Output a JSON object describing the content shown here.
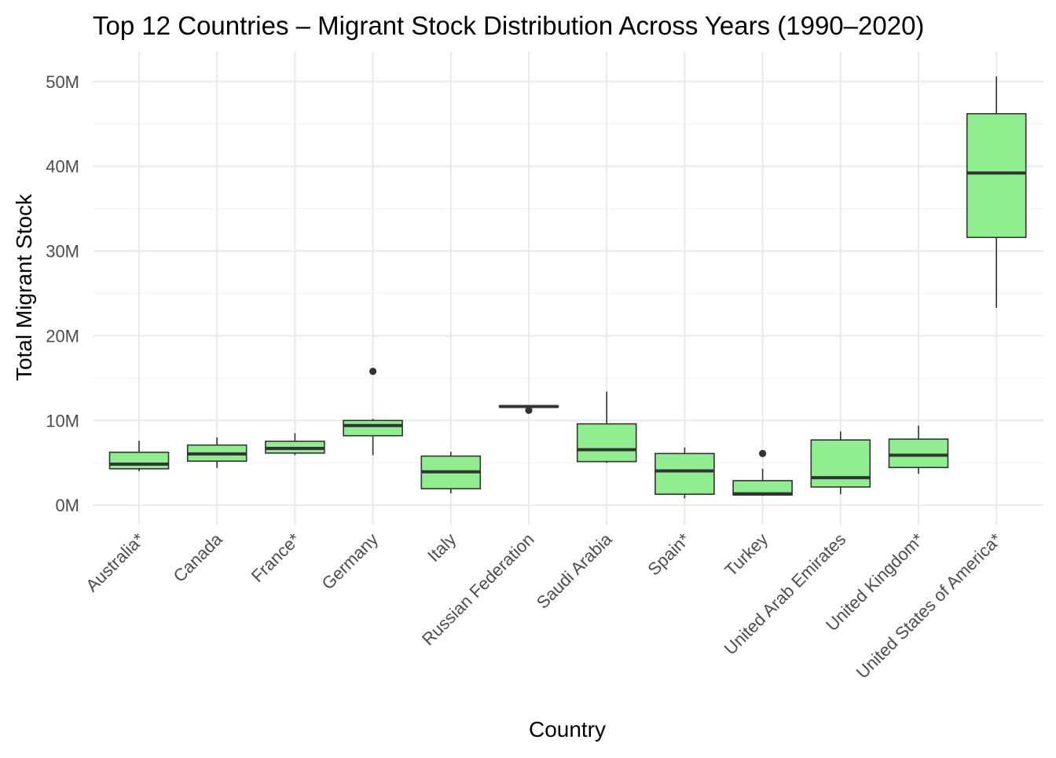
{
  "chart_data": {
    "type": "boxplot",
    "title": "Top 12 Countries – Migrant Stock Distribution Across Years (1990–2020)",
    "xlabel": "Country",
    "ylabel": "Total Migrant Stock",
    "ylim": [
      -2.3,
      53.5
    ],
    "y_unit": "M",
    "yticks": [
      0,
      10,
      20,
      30,
      40,
      50
    ],
    "ytick_labels": [
      "0M",
      "10M",
      "20M",
      "30M",
      "40M",
      "50M"
    ],
    "grid": true,
    "fill_color": "#90ee90",
    "stroke_color": "#333333",
    "categories": [
      "Australia*",
      "Canada",
      "France*",
      "Germany",
      "Italy",
      "Russian Federation",
      "Saudi Arabia",
      "Spain*",
      "Turkey",
      "United Arab Emirates",
      "United Kingdom*",
      "United States of America*"
    ],
    "boxes": [
      {
        "label": "Australia*",
        "min": 4.0,
        "q1": 4.3,
        "median": 4.85,
        "q3": 6.25,
        "max": 7.6,
        "outliers": []
      },
      {
        "label": "Canada",
        "min": 4.4,
        "q1": 5.2,
        "median": 6.05,
        "q3": 7.1,
        "max": 8.0,
        "outliers": []
      },
      {
        "label": "France*",
        "min": 5.9,
        "q1": 6.15,
        "median": 6.7,
        "q3": 7.55,
        "max": 8.5,
        "outliers": []
      },
      {
        "label": "Germany",
        "min": 5.9,
        "q1": 8.2,
        "median": 9.4,
        "q3": 10.0,
        "max": 10.2,
        "outliers": [
          15.8
        ]
      },
      {
        "label": "Italy",
        "min": 1.4,
        "q1": 1.95,
        "median": 3.95,
        "q3": 5.8,
        "max": 6.3,
        "outliers": []
      },
      {
        "label": "Russian Federation",
        "min": 11.6,
        "q1": 11.6,
        "median": 11.65,
        "q3": 11.7,
        "max": 11.7,
        "outliers": [
          11.2
        ]
      },
      {
        "label": "Saudi Arabia",
        "min": 5.0,
        "q1": 5.15,
        "median": 6.55,
        "q3": 9.6,
        "max": 13.4,
        "outliers": []
      },
      {
        "label": "Spain*",
        "min": 0.8,
        "q1": 1.3,
        "median": 4.05,
        "q3": 6.1,
        "max": 6.8,
        "outliers": []
      },
      {
        "label": "Turkey",
        "min": 1.1,
        "q1": 1.2,
        "median": 1.35,
        "q3": 2.9,
        "max": 4.3,
        "outliers": [
          6.1
        ]
      },
      {
        "label": "United Arab Emirates",
        "min": 1.3,
        "q1": 2.15,
        "median": 3.25,
        "q3": 7.7,
        "max": 8.7,
        "outliers": []
      },
      {
        "label": "United Kingdom*",
        "min": 3.7,
        "q1": 4.45,
        "median": 5.9,
        "q3": 7.8,
        "max": 9.4,
        "outliers": []
      },
      {
        "label": "United States of America*",
        "min": 23.3,
        "q1": 31.6,
        "median": 39.2,
        "q3": 46.2,
        "max": 50.6,
        "outliers": []
      }
    ]
  }
}
